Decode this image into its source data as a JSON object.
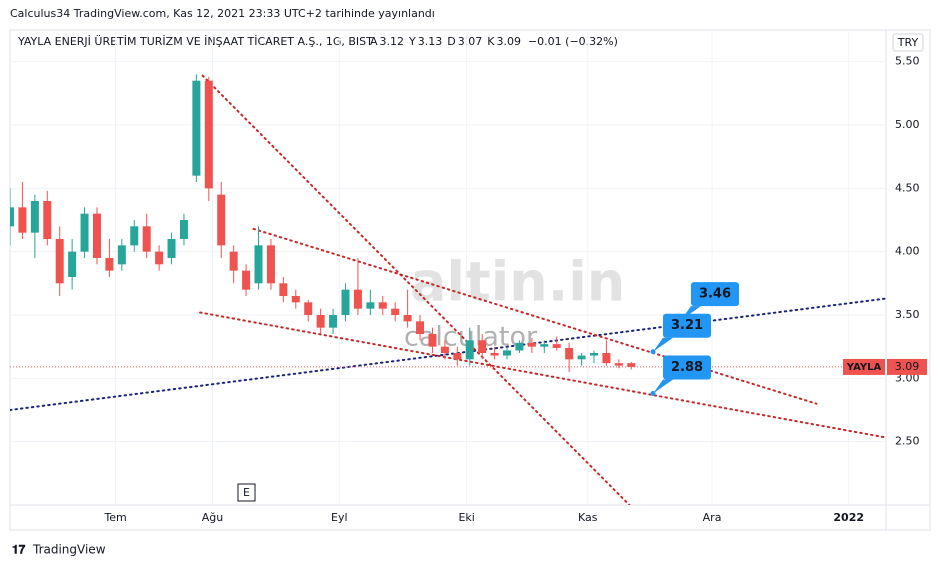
{
  "chart_data": {
    "type": "candlestick",
    "published": "Calculus34 TradingView.com, Kas 12, 2021 23:33 UTC+2 tarihinde yayınlandı",
    "title": "YAYLA ENERJİ ÜRETİM TURİZM VE İNŞAAT TİCARET A.Ş., 1G, BIST",
    "ohlc_header": {
      "open_label": "A",
      "open": 3.12,
      "high_label": "Y",
      "high": 3.13,
      "low_label": "D",
      "low": 3.07,
      "close_label": "K",
      "close": 3.09,
      "change": "−0.01 (−0.32%)"
    },
    "currency": "TRY",
    "symbol": "YAYLA",
    "last_price": 3.09,
    "watermark": [
      "altin.in",
      "calculator"
    ],
    "event_badge": "E",
    "footer": "TradingView",
    "up_color": "#26a69a",
    "down_color": "#ef5350",
    "x": [
      0,
      2,
      4,
      6,
      8,
      10,
      12,
      14,
      16,
      18,
      20,
      22,
      24,
      26,
      28,
      30,
      32,
      34,
      36,
      38,
      40,
      42,
      44,
      46,
      48,
      50,
      52,
      54,
      56,
      58,
      60,
      62,
      64,
      66,
      68,
      70,
      72,
      74,
      76,
      78,
      80,
      82,
      84,
      86,
      88,
      90,
      92,
      94,
      96,
      98,
      100
    ],
    "open": [
      4.2,
      4.35,
      4.15,
      4.4,
      4.1,
      3.8,
      4.0,
      4.3,
      3.95,
      3.9,
      4.05,
      4.2,
      4.0,
      3.95,
      4.1,
      4.6,
      5.35,
      4.45,
      4.0,
      3.85,
      3.75,
      4.05,
      3.75,
      3.65,
      3.6,
      3.5,
      3.4,
      3.5,
      3.7,
      3.55,
      3.6,
      3.55,
      3.5,
      3.45,
      3.35,
      3.25,
      3.2,
      3.15,
      3.3,
      3.2,
      3.18,
      3.22,
      3.28,
      3.25,
      3.27,
      3.24,
      3.15,
      3.18,
      3.2,
      3.12,
      3.12
    ],
    "high": [
      4.5,
      4.55,
      4.45,
      4.48,
      4.2,
      4.1,
      4.35,
      4.35,
      4.1,
      4.1,
      4.25,
      4.3,
      4.05,
      4.15,
      4.3,
      5.4,
      5.38,
      4.55,
      4.05,
      3.9,
      4.2,
      4.1,
      3.8,
      3.7,
      3.62,
      3.55,
      3.55,
      3.75,
      3.95,
      3.7,
      3.65,
      3.6,
      3.7,
      3.5,
      3.4,
      3.3,
      3.25,
      3.4,
      3.35,
      3.25,
      3.25,
      3.3,
      3.32,
      3.3,
      3.33,
      3.28,
      3.2,
      3.22,
      3.3,
      3.15,
      3.13
    ],
    "low": [
      4.05,
      4.1,
      3.95,
      4.05,
      3.65,
      3.7,
      3.95,
      3.9,
      3.8,
      3.85,
      4.0,
      3.95,
      3.85,
      3.9,
      4.05,
      4.55,
      4.4,
      3.95,
      3.75,
      3.65,
      3.7,
      3.7,
      3.6,
      3.55,
      3.45,
      3.35,
      3.35,
      3.45,
      3.5,
      3.5,
      3.5,
      3.45,
      3.4,
      3.3,
      3.2,
      3.15,
      3.1,
      3.1,
      3.15,
      3.15,
      3.15,
      3.2,
      3.2,
      3.2,
      3.22,
      3.05,
      3.1,
      3.12,
      3.1,
      3.08,
      3.07
    ],
    "close": [
      4.35,
      4.15,
      4.4,
      4.1,
      3.75,
      4.0,
      4.3,
      3.95,
      3.85,
      4.05,
      4.2,
      4.0,
      3.9,
      4.1,
      4.25,
      5.35,
      4.5,
      4.05,
      3.85,
      3.7,
      4.05,
      3.75,
      3.65,
      3.6,
      3.5,
      3.4,
      3.5,
      3.7,
      3.55,
      3.6,
      3.55,
      3.5,
      3.45,
      3.35,
      3.25,
      3.2,
      3.15,
      3.3,
      3.2,
      3.18,
      3.22,
      3.28,
      3.25,
      3.27,
      3.24,
      3.15,
      3.18,
      3.2,
      3.12,
      3.1,
      3.09
    ],
    "xlim": [
      0,
      141
    ],
    "xticks": [
      {
        "value": 17,
        "label": "Tem"
      },
      {
        "value": 32.6,
        "label": "Ağu"
      },
      {
        "value": 53,
        "label": "Eyl"
      },
      {
        "value": 73.5,
        "label": "Eki"
      },
      {
        "value": 93,
        "label": "Kas"
      },
      {
        "value": 113,
        "label": "Ara"
      },
      {
        "value": 135,
        "label": "2022"
      }
    ],
    "ylim": [
      2.0,
      5.75
    ],
    "yticks": [
      {
        "value": 2.5,
        "label": "2.50"
      },
      {
        "value": 3,
        "label": "3.00"
      },
      {
        "value": 3.5,
        "label": "3.50"
      },
      {
        "value": 4,
        "label": "4.00"
      },
      {
        "value": 4.5,
        "label": "4.50"
      },
      {
        "value": 5,
        "label": "5.00"
      },
      {
        "value": 5.5,
        "label": "5.50"
      }
    ],
    "grid": true,
    "trend_lines": [
      {
        "color": "#1a237e",
        "x": [
          0,
          141
        ],
        "values": [
          2.75,
          3.63
        ]
      },
      {
        "color": "#c62828",
        "x": [
          31,
          99.7
        ],
        "values": [
          5.39,
          2.0
        ]
      },
      {
        "color": "#c62828",
        "x": [
          39.2,
          129.8
        ],
        "values": [
          4.18,
          2.8
        ]
      },
      {
        "color": "#c62828",
        "x": [
          30.6,
          141.3
        ],
        "values": [
          3.52,
          2.53
        ]
      }
    ],
    "annotations": [
      {
        "x": 108,
        "value": 3.46
      },
      {
        "x": 103.5,
        "value": 3.21
      },
      {
        "x": 103.5,
        "value": 2.88
      }
    ],
    "annotation_color": "#2196f3"
  }
}
